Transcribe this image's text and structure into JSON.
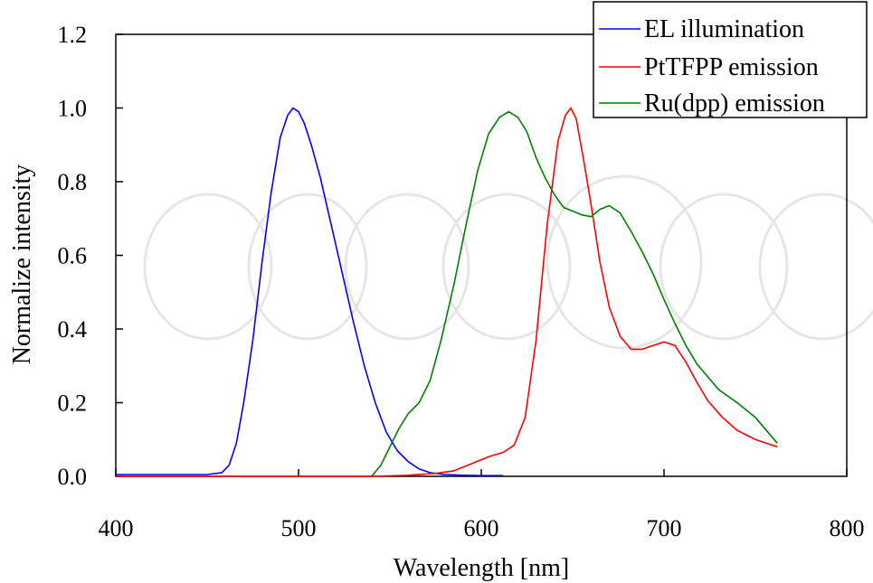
{
  "colors": {
    "el": "#0000ff",
    "pt": "#ff0000",
    "ru": "#008000",
    "axis": "#000000",
    "watermark": "#e6e6e6"
  },
  "chart_data": {
    "type": "line",
    "title": "",
    "xlabel": "Wavelength [nm]",
    "ylabel": "Normalize intensity",
    "xlim": [
      400,
      800
    ],
    "ylim": [
      0.0,
      1.2
    ],
    "x_ticks": [
      400,
      500,
      600,
      700,
      800
    ],
    "x_tick_labels": [
      "400",
      "500",
      "600",
      "700",
      "800"
    ],
    "y_ticks": [
      0.0,
      0.2,
      0.4,
      0.6,
      0.8,
      1.0,
      1.2
    ],
    "y_tick_labels": [
      "0.0",
      "0.2",
      "0.4",
      "0.6",
      "0.8",
      "1.0",
      "1.2"
    ],
    "grid": false,
    "legend_position": "top-right",
    "series": [
      {
        "name": "EL illumination",
        "color": "#0000ff",
        "x": [
          400,
          450,
          458,
          462,
          466,
          470,
          475,
          480,
          485,
          490,
          494,
          497,
          500,
          503,
          507,
          512,
          518,
          524,
          530,
          536,
          542,
          548,
          554,
          560,
          566,
          572,
          580,
          590,
          600,
          612
        ],
        "y": [
          0.005,
          0.005,
          0.01,
          0.03,
          0.09,
          0.2,
          0.37,
          0.58,
          0.77,
          0.92,
          0.98,
          1.0,
          0.99,
          0.96,
          0.9,
          0.81,
          0.68,
          0.55,
          0.42,
          0.3,
          0.2,
          0.12,
          0.07,
          0.04,
          0.02,
          0.01,
          0.005,
          0.003,
          0.002,
          0.002
        ]
      },
      {
        "name": "PtTFPP emission",
        "color": "#ff0000",
        "x": [
          400,
          500,
          540,
          560,
          575,
          585,
          595,
          605,
          612,
          618,
          624,
          630,
          636,
          642,
          646,
          649,
          652,
          656,
          660,
          665,
          670,
          676,
          682,
          688,
          694,
          700,
          706,
          712,
          718,
          724,
          732,
          740,
          750,
          762
        ],
        "y": [
          0.0,
          0.0,
          0.0,
          0.003,
          0.008,
          0.015,
          0.035,
          0.055,
          0.065,
          0.085,
          0.16,
          0.37,
          0.68,
          0.91,
          0.98,
          1.0,
          0.97,
          0.86,
          0.74,
          0.58,
          0.46,
          0.38,
          0.345,
          0.345,
          0.355,
          0.365,
          0.355,
          0.31,
          0.255,
          0.205,
          0.16,
          0.125,
          0.1,
          0.08
        ]
      },
      {
        "name": "Ru(dpp) emission",
        "color": "#008000",
        "x": [
          540,
          545,
          550,
          555,
          560,
          566,
          572,
          578,
          585,
          592,
          598,
          604,
          610,
          615,
          620,
          625,
          630,
          635,
          640,
          645,
          650,
          655,
          660,
          665,
          670,
          676,
          682,
          688,
          694,
          700,
          706,
          712,
          718,
          724,
          730,
          740,
          750,
          762
        ],
        "y": [
          0.0,
          0.03,
          0.08,
          0.13,
          0.17,
          0.2,
          0.26,
          0.37,
          0.52,
          0.69,
          0.83,
          0.93,
          0.975,
          0.99,
          0.975,
          0.935,
          0.865,
          0.81,
          0.765,
          0.73,
          0.72,
          0.71,
          0.705,
          0.725,
          0.735,
          0.715,
          0.665,
          0.61,
          0.55,
          0.48,
          0.415,
          0.355,
          0.305,
          0.27,
          0.235,
          0.2,
          0.16,
          0.09
        ]
      }
    ]
  }
}
